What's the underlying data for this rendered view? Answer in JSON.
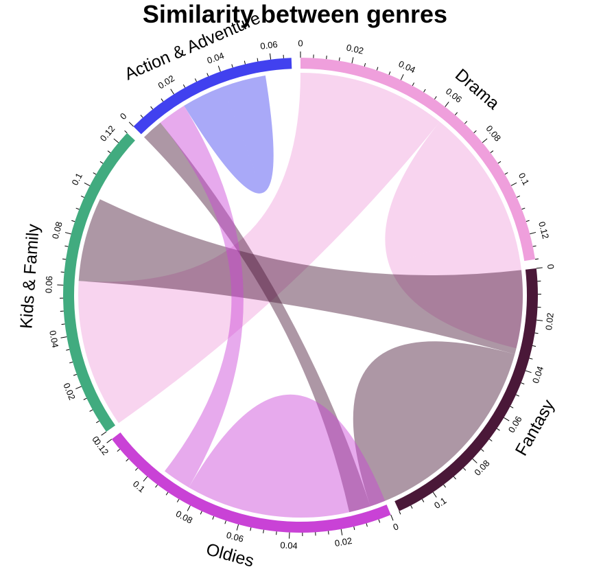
{
  "chart_data": {
    "type": "chord",
    "title": "Similarity between genres",
    "sectors": [
      {
        "name": "Drama",
        "color": "#ef9fdc",
        "total": 0.13
      },
      {
        "name": "Fantasy",
        "color": "#4a1838",
        "total": 0.115
      },
      {
        "name": "Oldies",
        "color": "#c942d6",
        "total": 0.12
      },
      {
        "name": "Kids & Family",
        "color": "#41ab7f",
        "total": 0.125
      },
      {
        "name": "Action & Adventure",
        "color": "#4141ef",
        "total": 0.068
      }
    ],
    "tick_step": 0.02,
    "links": [
      {
        "from": "Drama",
        "to": "Kids & Family",
        "value": 0.062
      },
      {
        "from": "Drama",
        "to": "Drama",
        "value": 0.052
      },
      {
        "from": "Fantasy",
        "to": "Kids & Family",
        "value": 0.035
      },
      {
        "from": "Fantasy",
        "to": "Fantasy",
        "value": 0.045
      },
      {
        "from": "Fantasy",
        "to": "Action & Adventure",
        "value": 0.009
      },
      {
        "from": "Oldies",
        "to": "Oldies",
        "value": 0.042
      },
      {
        "from": "Oldies",
        "to": "Action & Adventure",
        "value": 0.012
      },
      {
        "from": "Action & Adventure",
        "to": "Action & Adventure",
        "value": 0.018
      }
    ]
  }
}
